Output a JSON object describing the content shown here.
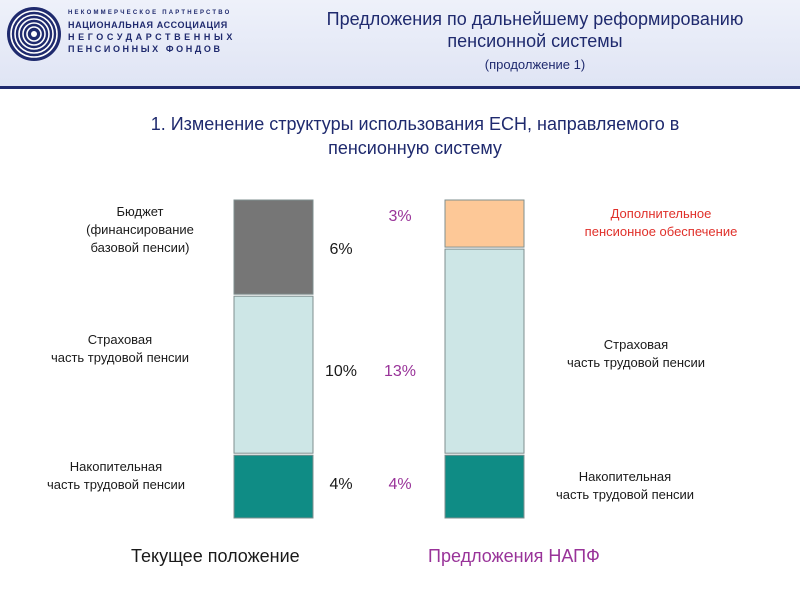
{
  "header": {
    "logo_lines": [
      "НЕКОММЕРЧЕСКОЕ ПАРТНЕРСТВО",
      "НАЦИОНАЛЬНАЯ АССОЦИАЦИЯ",
      "НЕГОСУДАРСТВЕННЫХ",
      "ПЕНСИОННЫХ ФОНДОВ"
    ],
    "title_line1": "Предложения по дальнейшему реформированию",
    "title_line2": "пенсионной системы",
    "subtitle": "(продолжение 1)"
  },
  "section_title_line1": "1. Изменение структуры использования ЕСН, направляемого в",
  "section_title_line2": "пенсионную систему",
  "left_labels": {
    "budget_line1": "Бюджет",
    "budget_line2": "(финансирование",
    "budget_line3": "базовой пенсии)",
    "insurance_line1": "Страховая",
    "insurance_line2": "часть трудовой пенсии",
    "funded_line1": "Накопительная",
    "funded_line2": "часть трудовой пенсии"
  },
  "right_labels": {
    "additional_line1": "Дополнительное",
    "additional_line2": "пенсионное обеспечение",
    "insurance_line1": "Страховая",
    "insurance_line2": "часть трудовой пенсии",
    "funded_line1": "Накопительная",
    "funded_line2": "часть трудовой пенсии"
  },
  "colors": {
    "budget": "#767676",
    "insurance": "#cde6e6",
    "funded": "#0f8c85",
    "additional": "#fdc897",
    "text_dark": "#1a1a1a",
    "accent_purple": "#993399",
    "accent_red": "#e0302a",
    "title_navy": "#1f2a6e"
  },
  "chart_data": [
    {
      "type": "bar",
      "stacked": true,
      "caption": "Текущее положение",
      "segments": [
        {
          "name": "Накопительная часть трудовой пенсии",
          "value": 4,
          "label": "4%"
        },
        {
          "name": "Страховая часть трудовой пенсии",
          "value": 10,
          "label": "10%"
        },
        {
          "name": "Бюджет (финансирование базовой пенсии)",
          "value": 6,
          "label": "6%"
        }
      ],
      "total": 20
    },
    {
      "type": "bar",
      "stacked": true,
      "caption": "Предложения НАПФ",
      "segments": [
        {
          "name": "Накопительная часть трудовой пенсии",
          "value": 4,
          "label": "4%"
        },
        {
          "name": "Страховая часть трудовой пенсии",
          "value": 13,
          "label": "13%"
        },
        {
          "name": "Дополнительное пенсионное обеспечение",
          "value": 3,
          "label": "3%"
        }
      ],
      "total": 20
    }
  ]
}
